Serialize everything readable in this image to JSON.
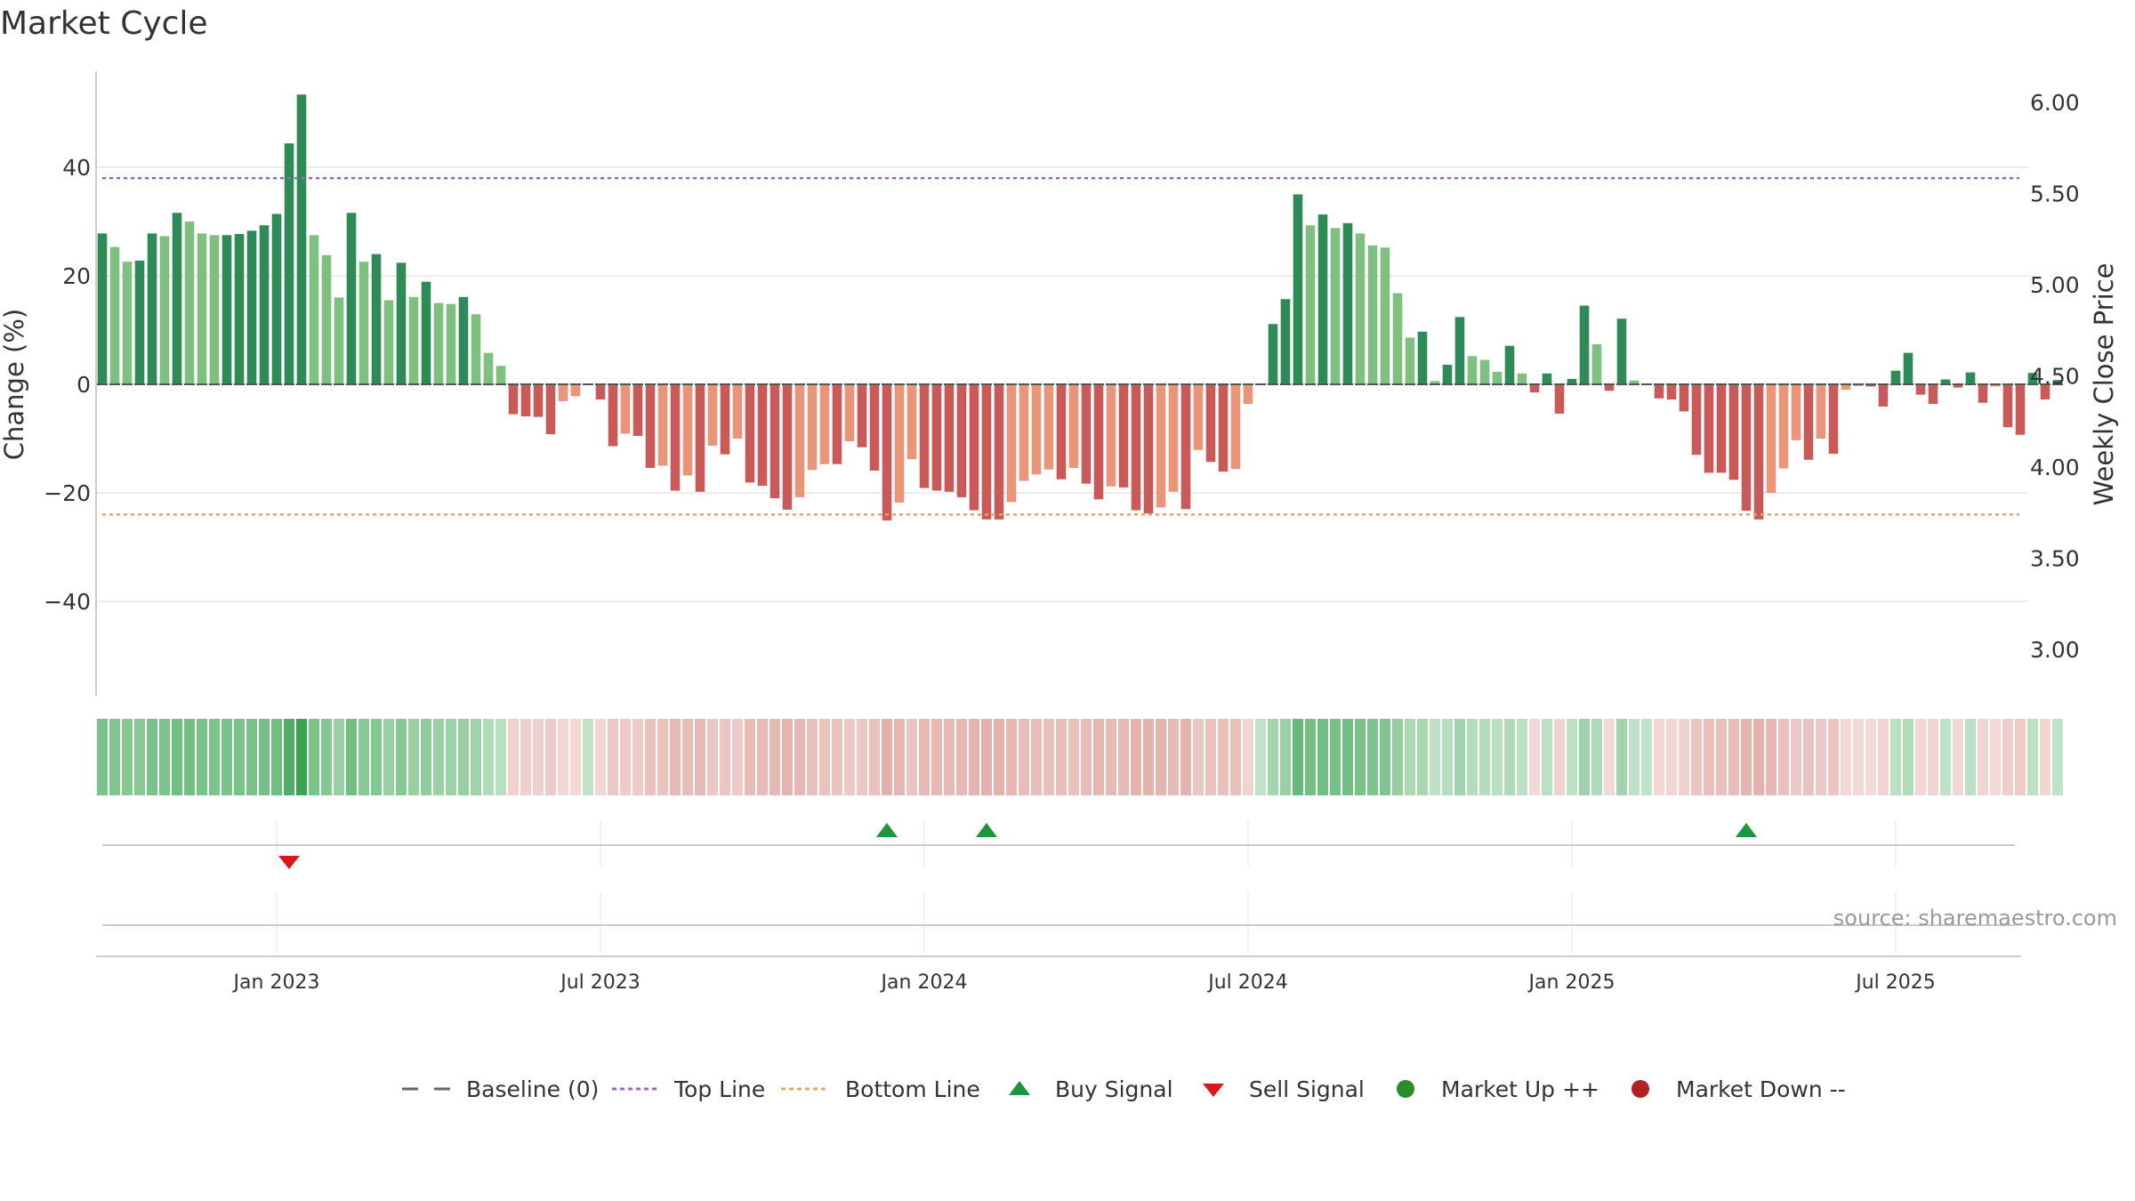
{
  "chart_data": {
    "type": "bar",
    "title": "Market Cycle",
    "ylabel_left": "Change (%)",
    "ylabel_right": "Weekly Close Price",
    "left_ticks": [
      -40,
      -20,
      0,
      20,
      40
    ],
    "left_ylim": [
      -58,
      58
    ],
    "right_ticks": [
      "3.00",
      "3.50",
      "4.00",
      "4.50",
      "5.00",
      "5.50",
      "6.00"
    ],
    "x_tick_labels": [
      "Jan 2023",
      "Jul 2023",
      "Jan 2024",
      "Jul 2024",
      "Jan 2025",
      "Jul 2025"
    ],
    "x_tick_week_index": [
      14,
      40,
      66,
      92,
      118,
      144
    ],
    "top_line": 38,
    "bottom_line": -24,
    "values": [
      27.8,
      25.3,
      22.6,
      22.8,
      27.8,
      27.3,
      31.6,
      30.0,
      27.8,
      27.5,
      27.5,
      27.7,
      28.3,
      29.3,
      31.4,
      44.4,
      53.4,
      27.5,
      23.8,
      16.0,
      31.6,
      22.6,
      24.0,
      15.5,
      22.4,
      16.1,
      18.9,
      15.0,
      14.8,
      16.1,
      12.9,
      5.8,
      3.4,
      -5.5,
      -5.9,
      -6.0,
      -9.2,
      -3.1,
      -2.2,
      0.0,
      -2.8,
      -11.4,
      -9.1,
      -9.5,
      -15.4,
      -15.0,
      -19.6,
      -16.8,
      -19.8,
      -11.3,
      -12.9,
      -10.0,
      -18.1,
      -18.7,
      -21.0,
      -23.1,
      -20.8,
      -15.8,
      -14.7,
      -14.7,
      -10.5,
      -11.6,
      -15.9,
      -25.1,
      -21.8,
      -13.8,
      -19.1,
      -19.6,
      -19.8,
      -20.8,
      -23.2,
      -24.9,
      -24.9,
      -21.7,
      -17.8,
      -16.6,
      -15.7,
      -17.5,
      -15.4,
      -18.3,
      -21.2,
      -18.8,
      -19.0,
      -23.2,
      -23.8,
      -22.7,
      -19.8,
      -23.0,
      -12.1,
      -14.3,
      -16.1,
      -15.6,
      -3.6,
      0.0,
      11.1,
      15.7,
      35.0,
      29.3,
      31.3,
      28.8,
      29.7,
      27.8,
      25.6,
      25.2,
      16.8,
      8.6,
      9.7,
      0.6,
      3.6,
      12.4,
      5.2,
      4.5,
      2.3,
      7.1,
      2.0,
      -1.5,
      2.0,
      -5.4,
      1.0,
      14.5,
      7.4,
      -1.2,
      12.1,
      0.7,
      0.0,
      -2.6,
      -2.8,
      -5.0,
      -13.0,
      -16.3,
      -16.3,
      -17.6,
      -23.3,
      -24.9,
      -20.0,
      -15.5,
      -10.3,
      -13.9,
      -10.0,
      -12.8,
      -1.0,
      -0.3,
      -0.4,
      -4.1,
      2.5,
      5.8,
      -1.9,
      -3.6,
      0.9,
      -0.6,
      2.2,
      -3.4,
      -0.4,
      -7.9,
      -9.3,
      2.1,
      -2.8,
      0.8
    ],
    "buy_signals_week_index": [
      63,
      71,
      132
    ],
    "sell_signals_week_index": [
      15
    ],
    "baseline_marker": "—",
    "legend": [
      "Baseline (0)",
      "Top Line",
      "Bottom Line",
      "Buy Signal",
      "Sell Signal",
      "Market Up ++",
      "Market Down --"
    ],
    "legend_placement": "bottom-center",
    "source_note": "source: sharemaestro.com",
    "colors": {
      "strong_up": "#2e8b57",
      "up": "#7fbf7f",
      "down": "#c85a5a",
      "weak_down": "#e8957a",
      "top_line": "#9966cc",
      "bottom_line": "#f0a060",
      "buy": "#1a9641",
      "sell": "#d7191c",
      "market_up": "#2a8c2a",
      "market_down": "#b22222"
    }
  }
}
